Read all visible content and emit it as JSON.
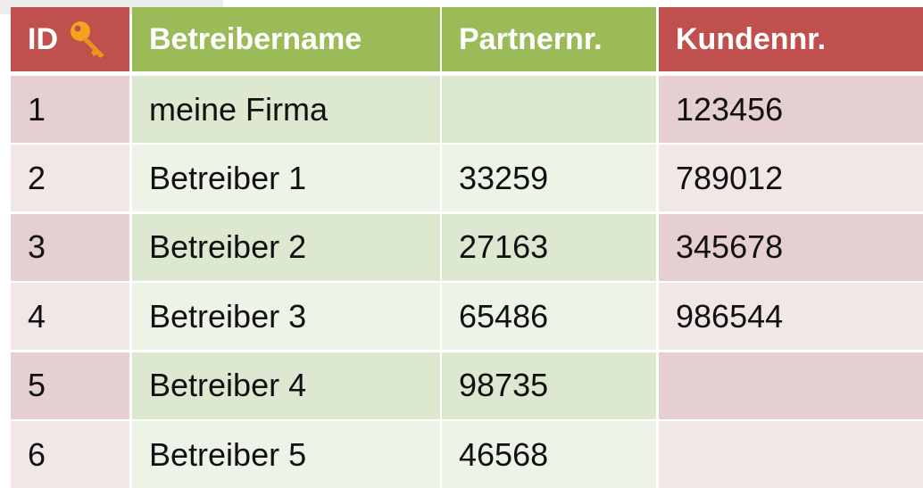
{
  "table": {
    "header": [
      "ID",
      "Betreibername",
      "Partnernr.",
      "Kundennr."
    ],
    "rows": [
      [
        "1",
        "meine Firma",
        null,
        "123456"
      ],
      [
        "2",
        "Betreiber 1",
        "33259",
        "789012"
      ],
      [
        "3",
        "Betreiber 2",
        "27163",
        "345678"
      ],
      [
        "4",
        "Betreiber 3",
        "65486",
        "986544"
      ],
      [
        "5",
        "Betreiber 4",
        "98735",
        null
      ],
      [
        "6",
        "Betreiber 5",
        "46568",
        null
      ]
    ]
  }
}
